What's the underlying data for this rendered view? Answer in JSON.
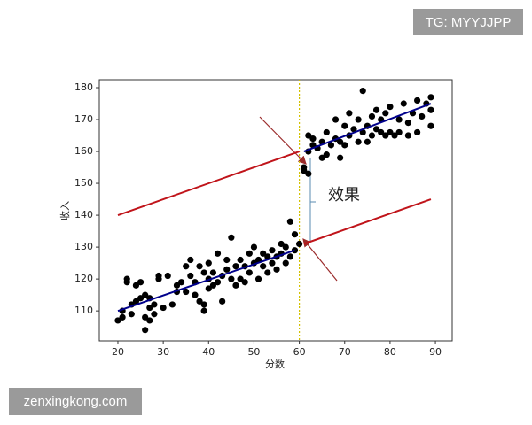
{
  "chart_data": {
    "type": "scatter",
    "xlabel": "分数",
    "ylabel": "收入",
    "annotation": "效果",
    "xlim": [
      15.9,
      93.7
    ],
    "ylim": [
      100.6,
      182.5
    ],
    "xticks": [
      20,
      30,
      40,
      50,
      60,
      70,
      80,
      90
    ],
    "yticks": [
      110,
      120,
      130,
      140,
      150,
      160,
      170,
      180
    ],
    "cutoff": 60,
    "cutoff_color": "#d4c200",
    "series": [
      {
        "color": "#000000",
        "x": [
          20,
          21,
          21,
          22,
          22,
          23,
          23,
          24,
          24,
          25,
          25,
          26,
          26,
          26,
          27,
          27,
          27,
          28,
          28,
          29,
          29,
          30,
          31,
          32,
          33,
          33,
          34,
          35,
          35,
          36,
          36,
          37,
          37,
          38,
          38,
          39,
          39,
          39,
          40,
          40,
          40,
          41,
          41,
          42,
          42,
          43,
          43,
          44,
          44,
          45,
          45,
          46,
          46,
          47,
          47,
          48,
          48,
          49,
          49,
          50,
          50,
          51,
          51,
          52,
          52,
          53,
          53,
          54,
          54,
          55,
          55,
          56,
          56,
          57,
          57,
          58,
          58,
          59,
          59,
          60,
          61,
          61,
          62,
          62,
          62,
          63,
          63,
          64,
          65,
          65,
          66,
          66,
          67,
          68,
          68,
          69,
          69,
          70,
          70,
          71,
          71,
          72,
          73,
          73,
          74,
          74,
          75,
          75,
          76,
          76,
          77,
          77,
          78,
          78,
          79,
          79,
          80,
          80,
          81,
          82,
          82,
          83,
          84,
          84,
          85,
          86,
          86,
          87,
          88,
          89,
          89,
          89
        ],
        "y": [
          107,
          108,
          110,
          119,
          120,
          109,
          112,
          113,
          118,
          119,
          114,
          115,
          108,
          104,
          107,
          111,
          114,
          112,
          109,
          120,
          121,
          111,
          121,
          112,
          116,
          118,
          119,
          116,
          124,
          121,
          126,
          115,
          119,
          113,
          124,
          122,
          112,
          110,
          117,
          120,
          125,
          118,
          122,
          119,
          128,
          113,
          121,
          123,
          126,
          120,
          133,
          118,
          124,
          120,
          126,
          124,
          119,
          122,
          128,
          125,
          130,
          120,
          126,
          128,
          124,
          122,
          127,
          129,
          125,
          123,
          127,
          131,
          128,
          130,
          125,
          138,
          127,
          134,
          129,
          131,
          155,
          154,
          153,
          165,
          160,
          162,
          164,
          161,
          158,
          163,
          166,
          159,
          162,
          170,
          164,
          158,
          163,
          162,
          168,
          165,
          172,
          167,
          170,
          163,
          179,
          166,
          168,
          163,
          165,
          171,
          167,
          173,
          166,
          170,
          165,
          172,
          166,
          174,
          165,
          170,
          166,
          175,
          165,
          169,
          172,
          166,
          176,
          171,
          175,
          168,
          177,
          173
        ]
      }
    ],
    "lines": [
      {
        "color": "#00008b",
        "x": [
          20,
          59
        ],
        "y": [
          110,
          129
        ]
      },
      {
        "color": "#00008b",
        "x": [
          61,
          89
        ],
        "y": [
          160,
          175
        ]
      },
      {
        "color": "#c0141a",
        "x": [
          20,
          60
        ],
        "y": [
          140,
          160
        ]
      },
      {
        "color": "#c0141a",
        "x": [
          61,
          89
        ],
        "y": [
          131,
          145
        ]
      }
    ]
  },
  "watermarks": [
    "TG: MYYJJPP",
    "zenxingkong.com"
  ]
}
